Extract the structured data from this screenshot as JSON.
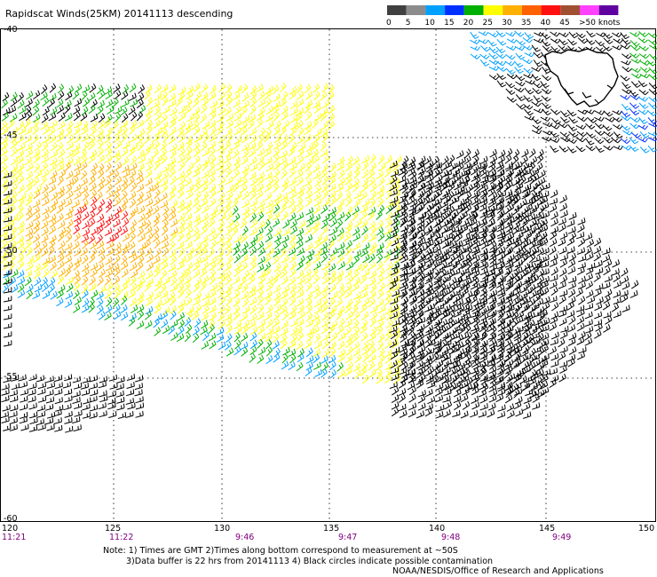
{
  "title": "Rapidscat Winds(25KM) 20141113 descending",
  "legend": {
    "colors": [
      "#404040",
      "#8c8c8c",
      "#00a0ff",
      "#0030ff",
      "#00b000",
      "#ffff00",
      "#ffb000",
      "#ff6000",
      "#ff1010",
      "#a05030",
      "#ff40ff",
      "#6000a0"
    ],
    "labels": [
      "0",
      "5",
      "10",
      "15",
      "20",
      "25",
      "30",
      "35",
      "40",
      "45",
      ">50 knots"
    ]
  },
  "axes": {
    "lat_labels": [
      "-40",
      "-45",
      "-50",
      "-55",
      "-60"
    ],
    "lon_labels": [
      "120",
      "125",
      "130",
      "135",
      "140",
      "145",
      "150"
    ],
    "time_labels": [
      "11:21",
      "11:22",
      "9:46",
      "9:47",
      "9:48",
      "9:49"
    ]
  },
  "notes": {
    "line1": "Note: 1) Times are GMT 2)Times along bottom correspond to measurement at ~50S",
    "line2": "3)Data buffer is 22 hrs from 20141113 4) Black circles indicate possible contamination",
    "line3": "NOAA/NESDIS/Office of Research and Applications"
  },
  "colors": {
    "calm": "#000000",
    "light": "#00a0ff",
    "moderate": "#00b000",
    "fresh": "#ffff00",
    "strong": "#ffb000",
    "gale": "#ff1010"
  }
}
